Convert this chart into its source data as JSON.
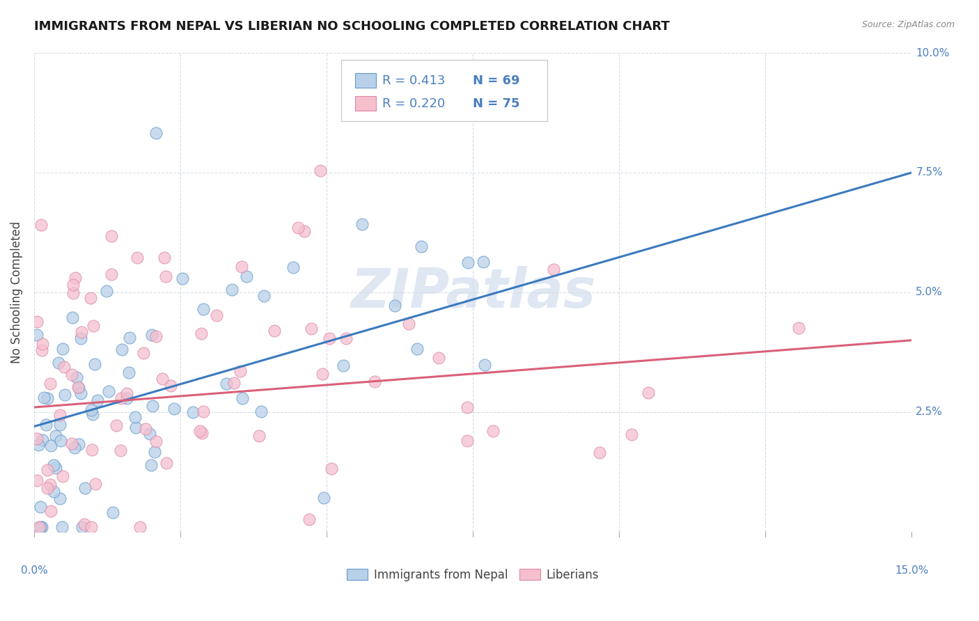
{
  "title": "IMMIGRANTS FROM NEPAL VS LIBERIAN NO SCHOOLING COMPLETED CORRELATION CHART",
  "source": "Source: ZipAtlas.com",
  "ylabel": "No Schooling Completed",
  "xlim": [
    0,
    0.15
  ],
  "ylim": [
    0,
    0.1
  ],
  "ytick_vals": [
    0.025,
    0.05,
    0.075,
    0.1
  ],
  "ytick_labels": [
    "2.5%",
    "5.0%",
    "7.5%",
    "10.0%"
  ],
  "xtick_vals": [
    0.0,
    0.025,
    0.05,
    0.075,
    0.1,
    0.125,
    0.15
  ],
  "legend_r1": "R = 0.413",
  "legend_n1": "N = 69",
  "legend_r2": "R = 0.220",
  "legend_n2": "N = 75",
  "legend_label1": "Immigrants from Nepal",
  "legend_label2": "Liberians",
  "blue_fill": "#b8d0e8",
  "blue_edge": "#6699cc",
  "pink_fill": "#f5bfce",
  "pink_edge": "#dd88aa",
  "line_blue": "#3a7abf",
  "line_pink": "#d9607a",
  "text_blue": "#4a7fc1",
  "text_dark": "#222222",
  "grid_color": "#d5dde8",
  "background": "#ffffff",
  "watermark_color": "#c5d5ea",
  "blue_line_start_y": 0.022,
  "blue_line_end_y": 0.075,
  "pink_line_start_y": 0.026,
  "pink_line_end_y": 0.04
}
